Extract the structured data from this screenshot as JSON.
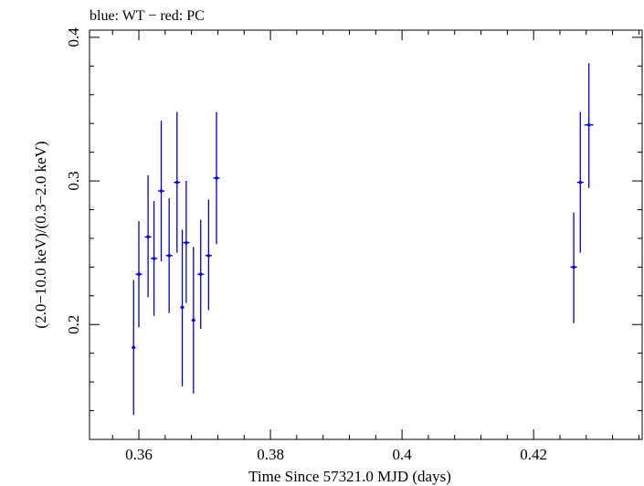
{
  "chart_data": {
    "type": "scatter",
    "title": "blue: WT − red: PC",
    "xlabel": "Time Since 57321.0 MJD (days)",
    "ylabel": "(2.0−10.0 keV)/(0.3−2.0 keV)",
    "xlim": [
      0.3525,
      0.4365
    ],
    "ylim": [
      0.12,
      0.405
    ],
    "x_ticks": [
      {
        "value": 0.36,
        "label": "0.36"
      },
      {
        "value": 0.38,
        "label": "0.38"
      },
      {
        "value": 0.4,
        "label": "0.4"
      },
      {
        "value": 0.42,
        "label": "0.42"
      }
    ],
    "y_ticks": [
      {
        "value": 0.2,
        "label": "0.2"
      },
      {
        "value": 0.3,
        "label": "0.3"
      },
      {
        "value": 0.4,
        "label": "0.4"
      }
    ],
    "series": [
      {
        "color": "#0000dd",
        "points": [
          {
            "x": 0.3592,
            "y": 0.184,
            "ylo": 0.137,
            "yhi": 0.231,
            "xerr": 0.0003
          },
          {
            "x": 0.36,
            "y": 0.235,
            "ylo": 0.198,
            "yhi": 0.272,
            "xerr": 0.0005
          },
          {
            "x": 0.3614,
            "y": 0.261,
            "ylo": 0.219,
            "yhi": 0.304,
            "xerr": 0.0005
          },
          {
            "x": 0.3623,
            "y": 0.246,
            "ylo": 0.206,
            "yhi": 0.286,
            "xerr": 0.0005
          },
          {
            "x": 0.3634,
            "y": 0.293,
            "ylo": 0.244,
            "yhi": 0.342,
            "xerr": 0.0005
          },
          {
            "x": 0.3646,
            "y": 0.248,
            "ylo": 0.208,
            "yhi": 0.288,
            "xerr": 0.0005
          },
          {
            "x": 0.3658,
            "y": 0.299,
            "ylo": 0.25,
            "yhi": 0.348,
            "xerr": 0.0005
          },
          {
            "x": 0.3666,
            "y": 0.212,
            "ylo": 0.157,
            "yhi": 0.266,
            "xerr": 0.0003
          },
          {
            "x": 0.3672,
            "y": 0.257,
            "ylo": 0.215,
            "yhi": 0.3,
            "xerr": 0.0005
          },
          {
            "x": 0.3683,
            "y": 0.203,
            "ylo": 0.152,
            "yhi": 0.254,
            "xerr": 0.0003
          },
          {
            "x": 0.3694,
            "y": 0.235,
            "ylo": 0.197,
            "yhi": 0.273,
            "xerr": 0.0005
          },
          {
            "x": 0.3706,
            "y": 0.248,
            "ylo": 0.21,
            "yhi": 0.287,
            "xerr": 0.0005
          },
          {
            "x": 0.3718,
            "y": 0.302,
            "ylo": 0.256,
            "yhi": 0.348,
            "xerr": 0.0005
          },
          {
            "x": 0.4261,
            "y": 0.24,
            "ylo": 0.201,
            "yhi": 0.278,
            "xerr": 0.0005
          },
          {
            "x": 0.4271,
            "y": 0.299,
            "ylo": 0.25,
            "yhi": 0.348,
            "xerr": 0.0005
          },
          {
            "x": 0.4284,
            "y": 0.339,
            "ylo": 0.295,
            "yhi": 0.382,
            "xerr": 0.0007
          }
        ]
      }
    ]
  }
}
